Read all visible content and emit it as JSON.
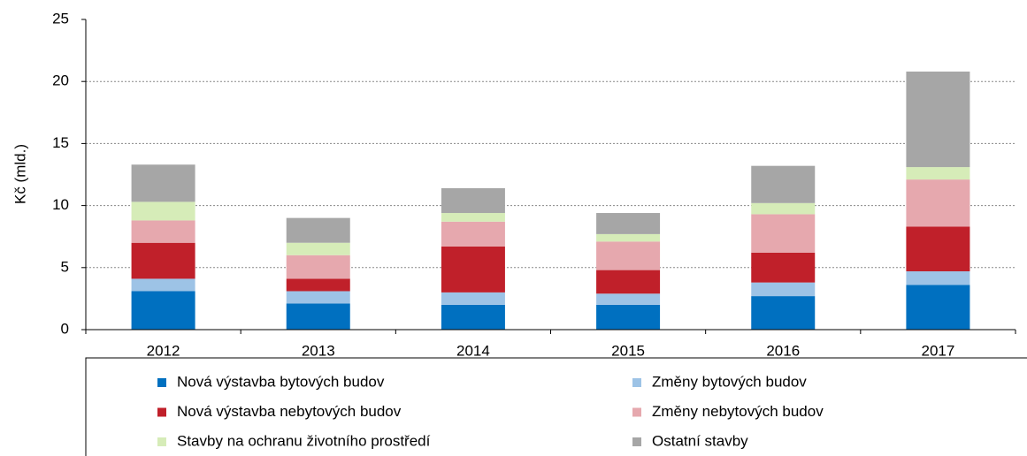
{
  "chart_data": {
    "type": "stacked_bar",
    "y_label": "Kč (mld.)",
    "categories": [
      "2012",
      "2013",
      "2014",
      "2015",
      "2016",
      "2017"
    ],
    "series": [
      {
        "name": "Nová výstavba bytových budov",
        "color": "#0070c0",
        "values": [
          3.1,
          2.1,
          2.0,
          2.0,
          2.7,
          3.6
        ]
      },
      {
        "name": "Změny bytových budov",
        "color": "#9dc3e6",
        "values": [
          1.0,
          1.0,
          1.0,
          0.9,
          1.1,
          1.1
        ]
      },
      {
        "name": "Nová výstavba nebytových budov",
        "color": "#c0202a",
        "values": [
          2.9,
          1.0,
          3.7,
          1.9,
          2.4,
          3.6
        ]
      },
      {
        "name": "Změny nebytových budov",
        "color": "#e6a8ae",
        "values": [
          1.8,
          1.9,
          2.0,
          2.3,
          3.1,
          3.8
        ]
      },
      {
        "name": "Stavby na ochranu životního prostředí",
        "color": "#d6ecb8",
        "values": [
          1.5,
          1.0,
          0.7,
          0.6,
          0.9,
          1.0
        ]
      },
      {
        "name": "Ostatní stavby",
        "color": "#a6a6a6",
        "values": [
          3.0,
          2.0,
          2.0,
          1.7,
          3.0,
          7.7
        ]
      }
    ],
    "ylim": [
      0,
      25
    ],
    "yticks": [
      0,
      5,
      10,
      15,
      20,
      25
    ],
    "grid": true,
    "legend": "bottom"
  }
}
